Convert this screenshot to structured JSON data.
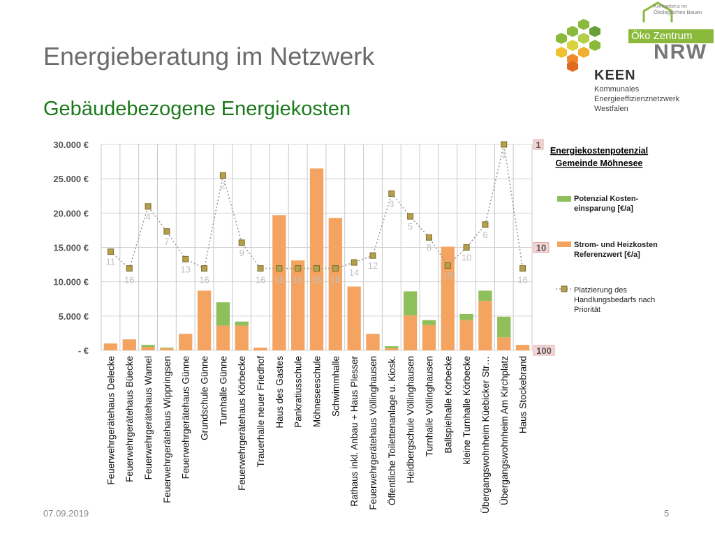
{
  "slide": {
    "title": "Energieberatung im Netzwerk",
    "subtitle": "Gebäudebezogene Energiekosten",
    "date": "07.09.2019",
    "page_number": "5"
  },
  "logo": {
    "tagline": "Kompetenz im Ökologischen Bauen",
    "oeko_label": "Öko Zentrum",
    "nrw_label": "NRW",
    "keen_label": "KEEN",
    "keen_sub": [
      "Kommunales",
      "Energieeffizienznetzwerk",
      "Westfalen"
    ]
  },
  "chart_data": {
    "type": "bar",
    "title": "Energiekostenpotenzial Gemeinde Möhnesee",
    "categories": [
      "Feuerwehrgerätehaus Delecke",
      "Feuerwehrgerätehaus Büecke",
      "Feuerwehrgerätehaus Wamel",
      "Feuerwehrgerätehaus Wippringsen",
      "Feuerwehrgerätehaus Günne",
      "Grundschule Günne",
      "Turnhalle Günne",
      "Feuerwehrgerätehaus Körbecke",
      "Trauerhalle neuer Friedhof",
      "Haus des Gastes",
      "Pankratiusschule",
      "Möhneseeschule",
      "Schwimmhalle",
      "Rathaus inkl. Anbau + Haus Plesser",
      "Feuerwehrgerätehaus Völlinghausen",
      "Öffentliche Toilettenanlage u. Kiosk.",
      "Heidbergschule Völlinghausen",
      "Turnhalle Völlinghausen",
      "Ballspielhalle Körbecke",
      "kleine Turnhalle Körbecke",
      "Übergangswohnheim Küebicker Str…",
      "Übergangswohnheim Am Kirchplatz",
      "Haus Stockebrand"
    ],
    "series": [
      {
        "name": "Strom- und Heizkosten Referenzwert [€/a]",
        "color": "#f4a460",
        "values": [
          1000,
          1600,
          500,
          300,
          2400,
          8700,
          3600,
          3600,
          400,
          19700,
          13100,
          26500,
          19300,
          9300,
          2400,
          300,
          5100,
          3700,
          15100,
          4400,
          7200,
          1900,
          800
        ]
      },
      {
        "name": "Potenzial Kosten-einsparung [€/a]",
        "color": "#8fbf5a",
        "values": [
          0,
          0,
          300,
          100,
          0,
          0,
          3400,
          600,
          0,
          0,
          0,
          0,
          0,
          0,
          0,
          300,
          3500,
          700,
          0,
          900,
          1500,
          3000,
          0
        ]
      },
      {
        "name": "Platzierung des Handlungsbedarfs nach Priorität",
        "axis": "secondary",
        "scale": "log",
        "values": [
          11,
          16,
          4,
          7,
          13,
          16,
          2,
          9,
          16,
          16,
          16,
          16,
          16,
          14,
          12,
          3,
          5,
          8,
          15,
          10,
          6,
          1,
          16
        ]
      }
    ],
    "y_axis": {
      "ylim": [
        0,
        30000
      ],
      "ticks": [
        "-   €",
        "5.000 €",
        "10.000 €",
        "15.000 €",
        "20.000 €",
        "25.000 €",
        "30.000 €"
      ]
    },
    "y2_axis": {
      "scale": "log",
      "reversed": true,
      "ylim": [
        1,
        100
      ],
      "ticks": [
        "1",
        "10",
        "100"
      ]
    },
    "legend": {
      "position": "right",
      "entries": [
        {
          "label_lines": [
            "Potenzial Kosten-",
            "einsparung [€/a]"
          ],
          "color": "#8fbf5a"
        },
        {
          "label_lines": [
            "Strom- und Heizkosten",
            "Referenzwert [€/a]"
          ],
          "color": "#f4a460"
        },
        {
          "label_lines": [
            "Platzierung des",
            "Handlungsbedarfs nach",
            "Priorität"
          ],
          "color": "#9a9a9a"
        }
      ]
    },
    "title_lines": [
      "Energiekostenpotenzial",
      "Gemeinde Möhnesee"
    ],
    "grid": true
  }
}
